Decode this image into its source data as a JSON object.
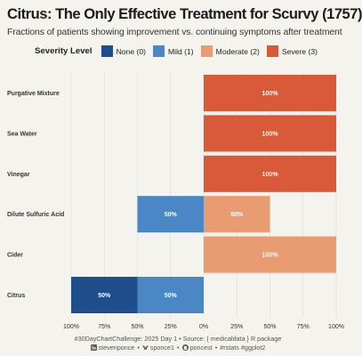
{
  "title": "Citrus: The Only Effective Treatment for Scurvy (1757)",
  "subtitle": "Fractions of patients showing improvement vs. continuing symptoms after treatment",
  "legend": {
    "title": "Severity Level",
    "items": [
      {
        "label": "None (0)",
        "color": "#1f4e8c"
      },
      {
        "label": "Mild (1)",
        "color": "#4b86c7"
      },
      {
        "label": "Moderate (2)",
        "color": "#e99b72"
      },
      {
        "label": "Severe (3)",
        "color": "#d95a38"
      }
    ]
  },
  "caption": {
    "line1": "#30DayChartChallenge: 2025 Day 1 • Source: { medicaldata } R package",
    "handles": [
      "stevenponce",
      "sponce1",
      "poncest"
    ],
    "tags": "#rstats #ggplot2",
    "separator": "•"
  },
  "chart_data": {
    "type": "bar",
    "orientation": "horizontal",
    "layout": "diverging-stacked",
    "categories": [
      "Purgative Mixture",
      "Sea Water",
      "Vinegar",
      "Dilute Sulfuric Acid",
      "Cider",
      "Citrus"
    ],
    "series": [
      {
        "name": "None (0)",
        "side": "left",
        "color": "#1f4e8c",
        "values": [
          0,
          0,
          0,
          0,
          0,
          50
        ]
      },
      {
        "name": "Mild (1)",
        "side": "left",
        "color": "#4b86c7",
        "values": [
          0,
          0,
          0,
          50,
          0,
          50
        ]
      },
      {
        "name": "Moderate (2)",
        "side": "right",
        "color": "#e99b72",
        "values": [
          0,
          0,
          0,
          50,
          100,
          0
        ]
      },
      {
        "name": "Severe (3)",
        "side": "right",
        "color": "#d95a38",
        "values": [
          100,
          100,
          100,
          0,
          0,
          0
        ]
      }
    ],
    "xlim": [
      -100,
      100
    ],
    "x_ticks": [
      -100,
      -75,
      -50,
      -25,
      0,
      25,
      50,
      75,
      100
    ],
    "x_tick_labels": [
      "100%",
      "75%",
      "50%",
      "25%",
      "0%",
      "25%",
      "50%",
      "75%",
      "100%"
    ],
    "grid": true,
    "legend_position": "top"
  }
}
